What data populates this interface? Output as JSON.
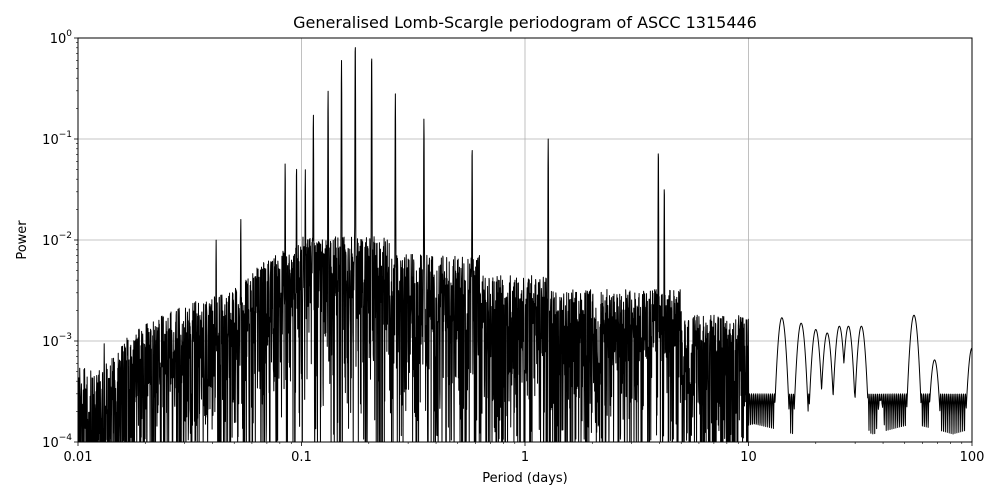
{
  "chart_data": {
    "type": "line",
    "title": "Generalised Lomb-Scargle periodogram of ASCC 1315446",
    "xlabel": "Period (days)",
    "ylabel": "Power",
    "x_scale": "log",
    "y_scale": "log",
    "xlim": [
      0.01,
      100
    ],
    "ylim": [
      0.0001,
      1
    ],
    "grid": true,
    "line_color": "#000000",
    "x_ticks": [
      {
        "value": 0.01,
        "label": "0.01"
      },
      {
        "value": 0.1,
        "label": "0.1"
      },
      {
        "value": 1,
        "label": "1"
      },
      {
        "value": 10,
        "label": "10"
      },
      {
        "value": 100,
        "label": "100"
      }
    ],
    "y_ticks": [
      {
        "value": 0.0001,
        "base": "10",
        "exp": "−4"
      },
      {
        "value": 0.001,
        "base": "10",
        "exp": "−3"
      },
      {
        "value": 0.01,
        "base": "10",
        "exp": "−2"
      },
      {
        "value": 0.1,
        "base": "10",
        "exp": "−1"
      },
      {
        "value": 1,
        "base": "10",
        "exp": "0"
      }
    ],
    "series": [
      {
        "peaks": [
          {
            "period": 0.113,
            "power": 0.18
          },
          {
            "period": 0.1315,
            "power": 0.3
          },
          {
            "period": 0.151,
            "power": 0.6
          },
          {
            "period": 0.174,
            "power": 0.9
          },
          {
            "period": 0.206,
            "power": 0.7
          },
          {
            "period": 0.263,
            "power": 0.28
          },
          {
            "period": 0.353,
            "power": 0.16
          },
          {
            "period": 0.58,
            "power": 0.085
          },
          {
            "period": 1.27,
            "power": 0.1
          },
          {
            "period": 3.95,
            "power": 0.08
          },
          {
            "period": 4.2,
            "power": 0.035
          },
          {
            "period": 0.0845,
            "power": 0.058
          },
          {
            "period": 0.095,
            "power": 0.055
          },
          {
            "period": 0.104,
            "power": 0.05
          },
          {
            "period": 0.0535,
            "power": 0.0165
          },
          {
            "period": 0.0415,
            "power": 0.01
          },
          {
            "period": 0.0248,
            "power": 0.0016
          },
          {
            "period": 0.0131,
            "power": 0.00095
          }
        ],
        "low_freq_bumps": [
          {
            "period": 14.1,
            "power": 0.0017
          },
          {
            "period": 17.2,
            "power": 0.0015
          },
          {
            "period": 20.0,
            "power": 0.0013
          },
          {
            "period": 22.5,
            "power": 0.0012
          },
          {
            "period": 25.5,
            "power": 0.0014
          },
          {
            "period": 28.0,
            "power": 0.0014
          },
          {
            "period": 32.0,
            "power": 0.0014
          },
          {
            "period": 39.0,
            "power": 0.00026
          },
          {
            "period": 55.0,
            "power": 0.0018
          },
          {
            "period": 68.0,
            "power": 0.00065
          },
          {
            "period": 100.0,
            "power": 0.00085
          }
        ]
      }
    ]
  }
}
